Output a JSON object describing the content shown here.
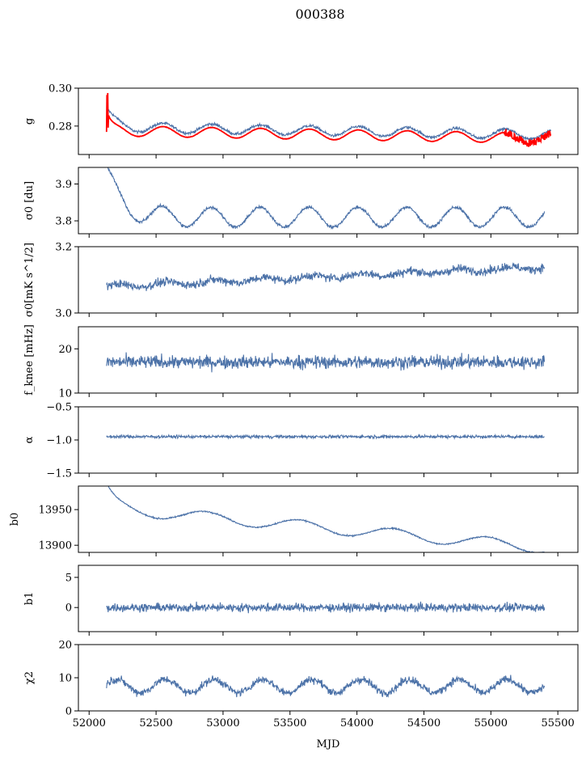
{
  "title": "000388",
  "xlabel": "MJD",
  "x_ticks": [
    52000,
    52500,
    53000,
    53500,
    54000,
    54500,
    55000,
    55500
  ],
  "x_range": [
    51920,
    55650
  ],
  "colors": {
    "series": "#4c72a8",
    "model": "#ff0000",
    "axis": "#000000"
  },
  "chart_data": [
    {
      "type": "line",
      "ylabel": "g",
      "ylim": [
        0.265,
        0.3
      ],
      "yticks": [
        "0.28",
        "0.30"
      ],
      "ytick_values": [
        0.28,
        0.3
      ],
      "series": [
        {
          "values_spec": {
            "mean": 0.2795,
            "slope_per_day": -1.2e-06,
            "amp": 0.0025,
            "period_days": 365,
            "phase": 0.6,
            "noise": 0.0007,
            "start": 0.2885,
            "decay_days": 60
          }
        },
        {
          "name": "",
          "values_spec": {
            "mean": 0.2775,
            "slope_per_day": -1.2e-06,
            "amp": 0.0027,
            "period_days": 365,
            "phase": 0.6,
            "noise": 0.0001,
            "start": 0.2875,
            "decay_days": 30
          }
        }
      ],
      "x_start": 52130,
      "x_end": 55450
    },
    {
      "type": "line",
      "ylabel": "σ0 [du]",
      "ylim": [
        3.765,
        3.945
      ],
      "yticks": [
        "3.8",
        "3.9"
      ],
      "ytick_values": [
        3.8,
        3.9
      ],
      "series": [
        {
          "values_spec": {
            "mean": 3.81,
            "slope_per_day": 0.0,
            "amp": 0.027,
            "period_days": 365,
            "phase": 0.7,
            "noise": 0.004,
            "start": 3.935,
            "decay_days": 110
          }
        }
      ],
      "x_start": 52130,
      "x_end": 55400
    },
    {
      "type": "line",
      "ylabel": "σ0[mK s^1/2]",
      "ylim": [
        3.0,
        3.2
      ],
      "yticks": [
        "3.0",
        "3.2"
      ],
      "ytick_values": [
        3.0,
        3.2
      ],
      "series": [
        {
          "values_spec": {
            "mean": 3.08,
            "slope_per_day": 1.8e-05,
            "amp": 0.006,
            "period_days": 365,
            "phase": 0.2,
            "noise": 0.012,
            "start": 3.08,
            "decay_days": 1
          }
        }
      ],
      "x_start": 52130,
      "x_end": 55400
    },
    {
      "type": "line",
      "ylabel": "f_knee [mHz]",
      "ylim": [
        10,
        25
      ],
      "yticks": [
        "10",
        "20"
      ],
      "ytick_values": [
        10,
        20
      ],
      "series": [
        {
          "values_spec": {
            "mean": 17.0,
            "slope_per_day": 0.0,
            "amp": 0.0,
            "period_days": 365,
            "phase": 0,
            "noise": 1.4,
            "start": 17.0,
            "decay_days": 1
          }
        }
      ],
      "x_start": 52130,
      "x_end": 55400
    },
    {
      "type": "line",
      "ylabel": "α",
      "ylim": [
        -1.5,
        -0.5
      ],
      "yticks": [
        "−1.5",
        "−1.0",
        "−0.5"
      ],
      "ytick_values": [
        -1.5,
        -1.0,
        -0.5
      ],
      "series": [
        {
          "values_spec": {
            "mean": -0.95,
            "slope_per_day": 0.0,
            "amp": 0.0,
            "period_days": 365,
            "phase": 0,
            "noise": 0.022,
            "start": -0.95,
            "decay_days": 1
          }
        }
      ],
      "x_start": 52130,
      "x_end": 55400
    },
    {
      "type": "line",
      "ylabel": "b0",
      "ylim": [
        13890,
        13983
      ],
      "yticks": [
        "13900",
        "13950"
      ],
      "ytick_values": [
        13900,
        13950
      ],
      "series": [
        {
          "values_spec": {
            "mean": 13952,
            "slope_per_day": -0.017,
            "amp": 8,
            "period_days": 700,
            "phase": 1.2,
            "noise": 0.9,
            "start": 13980,
            "decay_days": 70
          }
        }
      ],
      "x_start": 52130,
      "x_end": 55400
    },
    {
      "type": "line",
      "ylabel": "b1",
      "ylim": [
        -4,
        7
      ],
      "yticks": [
        "0",
        "5"
      ],
      "ytick_values": [
        0,
        5
      ],
      "series": [
        {
          "values_spec": {
            "mean": 0.0,
            "slope_per_day": 0.0,
            "amp": 0.0,
            "period_days": 365,
            "phase": 0,
            "noise": 0.65,
            "start": 0.0,
            "decay_days": 1
          }
        }
      ],
      "x_start": 52130,
      "x_end": 55400
    },
    {
      "type": "line",
      "ylabel": "χ2",
      "ylim": [
        0,
        20
      ],
      "yticks": [
        "0",
        "10",
        "20"
      ],
      "ytick_values": [
        0,
        10,
        20
      ],
      "series": [
        {
          "values_spec": {
            "mean": 7.5,
            "slope_per_day": 0.0,
            "amp": 2.0,
            "period_days": 365,
            "phase": 0.3,
            "noise": 1.1,
            "start": 7.5,
            "decay_days": 1
          }
        }
      ],
      "x_start": 52130,
      "x_end": 55400
    }
  ]
}
